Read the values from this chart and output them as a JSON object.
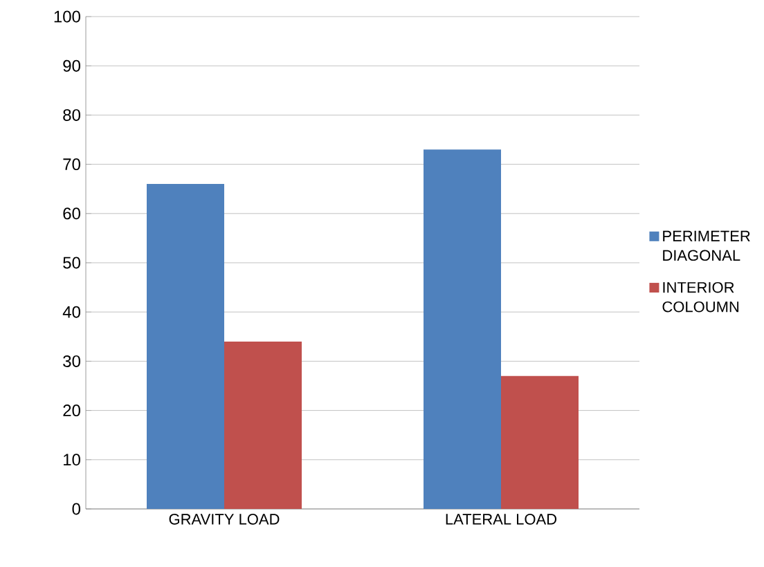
{
  "chart_data": {
    "type": "bar",
    "categories": [
      "GRAVITY LOAD",
      "LATERAL LOAD"
    ],
    "series": [
      {
        "name": "PERIMETER DIAGONAL",
        "color": "#4f81bd",
        "values": [
          66,
          73
        ]
      },
      {
        "name": "INTERIOR COLOUMN",
        "color": "#c0504d",
        "values": [
          34,
          27
        ]
      }
    ],
    "ylim": [
      0,
      100
    ],
    "yticks": [
      0,
      10,
      20,
      30,
      40,
      50,
      60,
      70,
      80,
      90,
      100
    ],
    "grid": "y",
    "legend": "right"
  }
}
